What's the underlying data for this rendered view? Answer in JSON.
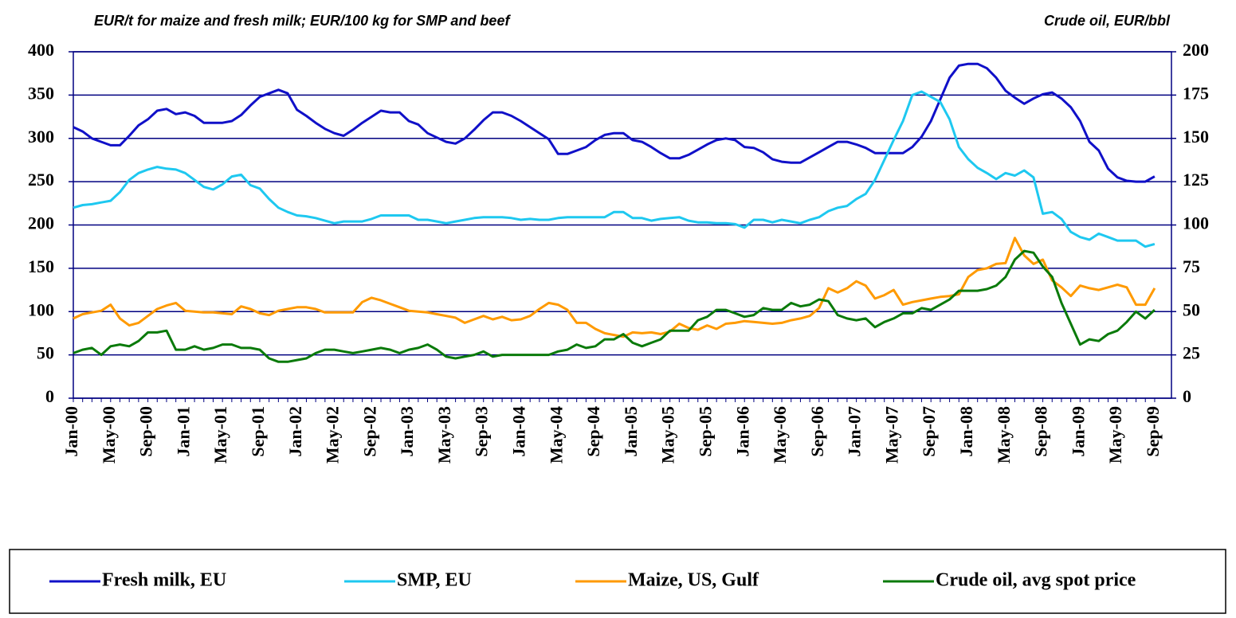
{
  "chart_data": {
    "type": "line",
    "y_axis_label": "EUR/t for maize and fresh milk; EUR/100 kg for SMP and beef",
    "y2_axis_label": "Crude oil, EUR/bbl",
    "categories": [
      "Jan-00",
      null,
      null,
      null,
      "May-00",
      null,
      null,
      null,
      "Sep-00",
      null,
      null,
      null,
      "Jan-01",
      null,
      null,
      null,
      "May-01",
      null,
      null,
      null,
      "Sep-01",
      null,
      null,
      null,
      "Jan-02",
      null,
      null,
      null,
      "May-02",
      null,
      null,
      null,
      "Sep-02",
      null,
      null,
      null,
      "Jan-03",
      null,
      null,
      null,
      "May-03",
      null,
      null,
      null,
      "Sep-03",
      null,
      null,
      null,
      "Jan-04",
      null,
      null,
      null,
      "May-04",
      null,
      null,
      null,
      "Sep-04",
      null,
      null,
      null,
      "Jan-05",
      null,
      null,
      null,
      "May-05",
      null,
      null,
      null,
      "Sep-05",
      null,
      null,
      null,
      "Jan-06",
      null,
      null,
      null,
      "May-06",
      null,
      null,
      null,
      "Sep-06",
      null,
      null,
      null,
      "Jan-07",
      null,
      null,
      null,
      "May-07",
      null,
      null,
      null,
      "Sep-07",
      null,
      null,
      null,
      "Jan-08",
      null,
      null,
      null,
      "May-08",
      null,
      null,
      null,
      "Sep-08",
      null,
      null,
      null,
      "Jan-09",
      null,
      null,
      null,
      "May-09",
      null,
      null,
      null,
      "Sep-09"
    ],
    "ylim": [
      0,
      400
    ],
    "yticks": [
      0,
      50,
      100,
      150,
      200,
      250,
      300,
      350,
      400
    ],
    "y2lim": [
      0,
      200
    ],
    "y2ticks": [
      0,
      25,
      50,
      75,
      100,
      125,
      150,
      175,
      200
    ],
    "grid": true,
    "legend": "bottom",
    "series": [
      {
        "name": "Fresh milk, EU",
        "color": "#1010c8",
        "values": [
          313,
          308,
          300,
          296,
          292,
          292,
          303,
          315,
          322,
          332,
          334,
          328,
          330,
          326,
          318,
          318,
          318,
          320,
          327,
          338,
          348,
          352,
          356,
          352,
          333,
          326,
          318,
          311,
          306,
          303,
          310,
          318,
          325,
          332,
          330,
          330,
          320,
          316,
          306,
          301,
          296,
          294,
          300,
          310,
          321,
          330,
          330,
          326,
          320,
          313,
          306,
          299,
          282,
          282,
          286,
          290,
          298,
          304,
          306,
          306,
          298,
          296,
          290,
          283,
          277,
          277,
          281,
          287,
          293,
          298,
          300,
          298,
          290,
          289,
          284,
          276,
          273,
          272,
          272,
          278,
          284,
          290,
          296,
          296,
          293,
          289,
          283,
          283,
          283,
          283,
          290,
          302,
          320,
          345,
          370,
          384,
          386,
          386,
          381,
          370,
          355,
          347,
          340,
          346,
          351,
          353,
          346,
          336,
          320,
          296,
          286,
          265,
          255,
          251,
          250,
          250,
          256
        ]
      },
      {
        "name": "SMP, EU",
        "color": "#1ec8f0",
        "values": [
          220,
          223,
          224,
          226,
          228,
          238,
          252,
          260,
          264,
          267,
          265,
          264,
          260,
          252,
          244,
          241,
          247,
          256,
          258,
          246,
          242,
          230,
          220,
          215,
          211,
          210,
          208,
          205,
          202,
          204,
          204,
          204,
          207,
          211,
          211,
          211,
          211,
          206,
          206,
          204,
          202,
          204,
          206,
          208,
          209,
          209,
          209,
          208,
          206,
          207,
          206,
          206,
          208,
          209,
          209,
          209,
          209,
          209,
          215,
          215,
          208,
          208,
          205,
          207,
          208,
          209,
          205,
          203,
          203,
          202,
          202,
          201,
          197,
          206,
          206,
          203,
          206,
          204,
          202,
          206,
          209,
          216,
          220,
          222,
          230,
          236,
          252,
          275,
          298,
          320,
          350,
          354,
          348,
          342,
          322,
          290,
          276,
          266,
          260,
          253,
          260,
          257,
          263,
          255,
          213,
          215,
          207,
          192,
          186,
          183,
          190,
          186,
          182,
          182,
          182,
          175,
          178
        ]
      },
      {
        "name": "Maize, US, Gulf",
        "color": "#ff9a00",
        "values": [
          92,
          97,
          99,
          101,
          108,
          92,
          84,
          87,
          95,
          103,
          107,
          110,
          101,
          100,
          99,
          99,
          98,
          97,
          106,
          103,
          98,
          96,
          101,
          103,
          105,
          105,
          103,
          99,
          99,
          99,
          99,
          111,
          116,
          113,
          109,
          105,
          101,
          100,
          99,
          97,
          95,
          93,
          87,
          91,
          95,
          91,
          94,
          90,
          91,
          95,
          103,
          110,
          108,
          102,
          87,
          87,
          80,
          75,
          73,
          71,
          76,
          75,
          76,
          74,
          77,
          86,
          81,
          79,
          84,
          80,
          86,
          87,
          89,
          88,
          87,
          86,
          87,
          90,
          92,
          95,
          104,
          127,
          122,
          127,
          135,
          130,
          115,
          119,
          125,
          108,
          111,
          113,
          115,
          117,
          118,
          120,
          140,
          148,
          150,
          155,
          156,
          185,
          165,
          155,
          160,
          136,
          128,
          118,
          130,
          127,
          125,
          128,
          131,
          128,
          108,
          108,
          127
        ]
      },
      {
        "name": "Crude oil, avg spot price",
        "color": "#0a7a0a",
        "axis": "y2",
        "values": [
          26,
          28,
          29,
          25,
          30,
          31,
          30,
          33,
          38,
          38,
          39,
          28,
          28,
          30,
          28,
          29,
          31,
          31,
          29,
          29,
          28,
          23,
          21,
          21,
          22,
          23,
          26,
          28,
          28,
          27,
          26,
          27,
          28,
          29,
          28,
          26,
          28,
          29,
          31,
          28,
          24,
          23,
          24,
          25,
          27,
          24,
          25,
          25,
          25,
          25,
          25,
          25,
          27,
          28,
          31,
          29,
          30,
          34,
          34,
          37,
          32,
          30,
          32,
          34,
          39,
          39,
          39,
          45,
          47,
          51,
          51,
          49,
          47,
          48,
          52,
          51,
          51,
          55,
          53,
          54,
          57,
          56,
          48,
          46,
          45,
          46,
          41,
          44,
          46,
          49,
          49,
          52,
          51,
          54,
          57,
          62,
          62,
          62,
          63,
          65,
          70,
          80,
          85,
          84,
          76,
          70,
          55,
          43,
          31,
          34,
          33,
          37,
          39,
          44,
          50,
          46,
          51
        ]
      }
    ]
  }
}
